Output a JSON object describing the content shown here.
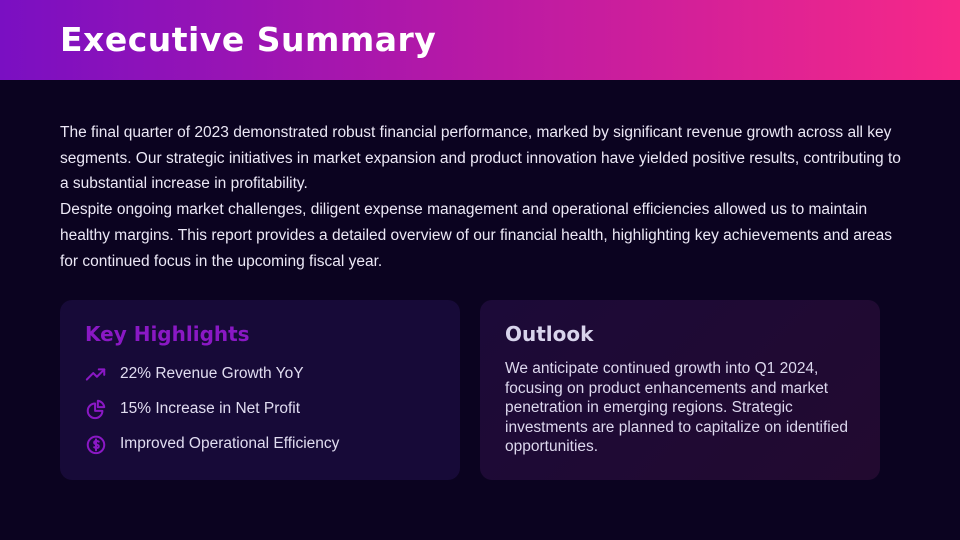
{
  "header": {
    "title": "Executive Summary"
  },
  "intro": {
    "paragraphs": [
      "The final quarter of 2023 demonstrated robust financial performance, marked by significant revenue growth across all key segments. Our strategic initiatives in market expansion and product innovation have yielded positive results, contributing to a substantial increase in profitability.",
      "Despite ongoing market challenges, diligent expense management and operational efficiencies allowed us to maintain healthy margins. This report provides a detailed overview of our financial health, highlighting key achievements and areas for continued focus in the upcoming fiscal year."
    ]
  },
  "highlights": {
    "title": "Key Highlights",
    "items": [
      {
        "icon": "trending-up-icon",
        "label": "22% Revenue Growth YoY"
      },
      {
        "icon": "pie-chart-icon",
        "label": "15% Increase in Net Profit"
      },
      {
        "icon": "dollar-circle-icon",
        "label": "Improved Operational Efficiency"
      }
    ]
  },
  "outlook": {
    "title": "Outlook",
    "text": "We anticipate continued growth into Q1 2024, focusing on product enhancements and market penetration in emerging regions. Strategic investments are planned to capitalize on identified opportunities."
  },
  "colors": {
    "accent": "#8a18c4",
    "gradient_start": "#7a0fc2",
    "gradient_end": "#f72888",
    "background": "#0b0320"
  }
}
